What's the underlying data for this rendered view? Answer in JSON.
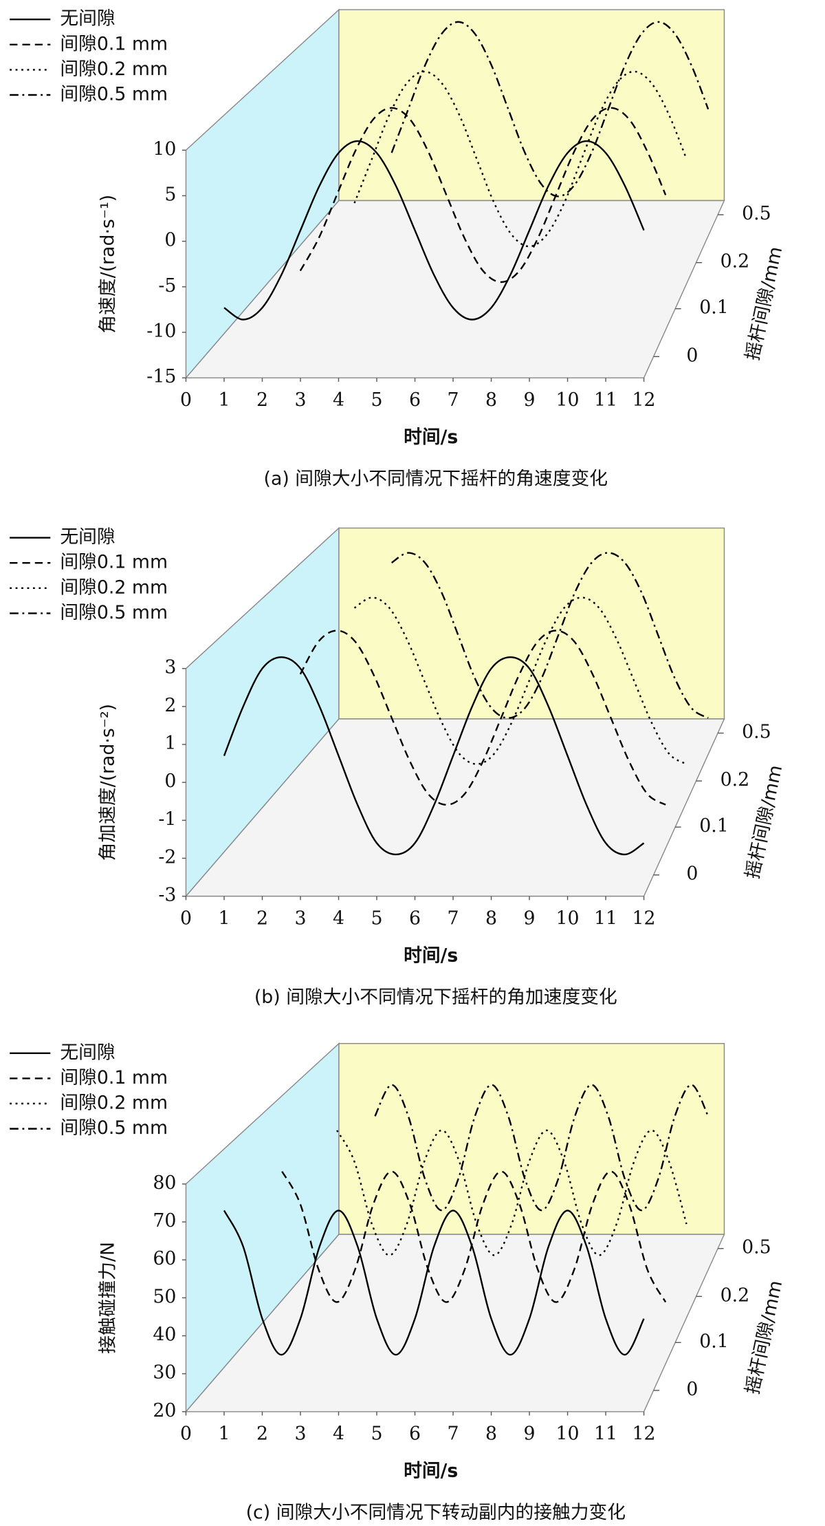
{
  "chart_data": [
    {
      "type": "line",
      "caption": "(a) 间隙大小不同情况下摇杆的角速度变化",
      "xlabel": "时间/s",
      "ylabel": "角速度/(rad·s⁻¹)",
      "zlabel": "摇杆间隙/mm",
      "x": [
        1,
        1.5,
        2,
        2.5,
        3,
        3.5,
        4,
        4.5,
        5,
        5.5,
        6,
        6.5,
        7,
        7.5,
        8,
        8.5,
        9,
        9.5,
        10,
        10.5,
        11,
        11.5,
        12
      ],
      "xlim": [
        0,
        12
      ],
      "xticks": [
        0,
        1,
        2,
        3,
        4,
        5,
        6,
        7,
        8,
        9,
        10,
        11,
        12
      ],
      "ylim": [
        -15,
        10
      ],
      "yticks": [
        -15,
        -10,
        -5,
        0,
        5,
        10
      ],
      "zticks": [
        0,
        0.1,
        0.2,
        0.5
      ],
      "series": [
        {
          "name": "无间隙",
          "color": "#000000",
          "dash": "solid",
          "values": [
            -7.3,
            -8.6,
            -7.3,
            -3.7,
            1.2,
            6.1,
            9.7,
            11,
            9.7,
            6.1,
            1.2,
            -3.7,
            -7.3,
            -8.6,
            -7.3,
            -3.7,
            1.2,
            6.1,
            9.7,
            11,
            9.7,
            6.1,
            1.2
          ]
        },
        {
          "name": "间隙0.1 mm",
          "color": "#000000",
          "dash": "dashed",
          "values": [
            null,
            null,
            -8.2,
            -4.5,
            0.5,
            5.5,
            9.2,
            10.5,
            9.2,
            5.5,
            0.5,
            -4.5,
            -8.2,
            -9.5,
            -8.2,
            -4.5,
            0.5,
            5.5,
            9.2,
            10.5,
            9.2,
            5.5,
            0.5
          ]
        },
        {
          "name": "间隙0.2 mm",
          "color": "#000000",
          "dash": "dotted",
          "values": [
            null,
            null,
            null,
            -5.3,
            0,
            5.3,
            9.1,
            10.5,
            9.1,
            5.3,
            0,
            -5.3,
            -9.1,
            -10.5,
            -9.1,
            -5.3,
            0,
            5.3,
            9.1,
            10.5,
            9.1,
            5.3,
            0
          ]
        },
        {
          "name": "间隙0.5 mm",
          "color": "#000000",
          "dash": "dashdot",
          "values": [
            null,
            null,
            null,
            -4.5,
            1,
            6.5,
            10.5,
            12,
            10.5,
            6.5,
            1,
            -4.5,
            -8.5,
            -10,
            -8.5,
            -4.5,
            1,
            6.5,
            10.5,
            12,
            10.5,
            6.5,
            1
          ]
        }
      ]
    },
    {
      "type": "line",
      "caption": "(b) 间隙大小不同情况下摇杆的角加速度变化",
      "xlabel": "时间/s",
      "ylabel": "角加速度/(rad·s⁻²)",
      "zlabel": "摇杆间隙/mm",
      "x": [
        1,
        1.5,
        2,
        2.5,
        3,
        3.5,
        4,
        4.5,
        5,
        5.5,
        6,
        6.5,
        7,
        7.5,
        8,
        8.5,
        9,
        9.5,
        10,
        10.5,
        11,
        11.5,
        12
      ],
      "xlim": [
        0,
        12
      ],
      "xticks": [
        0,
        1,
        2,
        3,
        4,
        5,
        6,
        7,
        8,
        9,
        10,
        11,
        12
      ],
      "ylim": [
        -3,
        3
      ],
      "yticks": [
        -3,
        -2,
        -1,
        0,
        1,
        2,
        3
      ],
      "zticks": [
        0,
        0.1,
        0.2,
        0.5
      ],
      "series": [
        {
          "name": "无间隙",
          "color": "#000000",
          "dash": "solid",
          "values": [
            0.7,
            2.0,
            3.0,
            3.3,
            3.0,
            2.0,
            0.7,
            -0.6,
            -1.6,
            -1.9,
            -1.6,
            -0.6,
            0.7,
            2.0,
            3.0,
            3.3,
            3.0,
            2.0,
            0.7,
            -0.6,
            -1.6,
            -1.9,
            -1.6
          ]
        },
        {
          "name": "间隙0.1 mm",
          "color": "#000000",
          "dash": "dashed",
          "values": [
            null,
            null,
            1.8,
            2.7,
            3.0,
            2.7,
            1.8,
            0.6,
            -0.6,
            -1.5,
            -1.8,
            -1.5,
            -0.6,
            0.6,
            1.8,
            2.7,
            3.0,
            2.7,
            1.8,
            0.6,
            -0.6,
            -1.5,
            -1.8
          ]
        },
        {
          "name": "间隙0.2 mm",
          "color": "#000000",
          "dash": "dotted",
          "values": [
            null,
            null,
            null,
            2.6,
            2.9,
            2.6,
            1.7,
            0.5,
            -0.7,
            -1.6,
            -1.9,
            -1.6,
            -0.7,
            0.5,
            1.7,
            2.6,
            2.9,
            2.6,
            1.7,
            0.5,
            -0.7,
            -1.6,
            -1.9
          ]
        },
        {
          "name": "间隙0.5 mm",
          "color": "#000000",
          "dash": "dashdot",
          "values": [
            null,
            null,
            null,
            2.8,
            3.1,
            2.8,
            1.9,
            0.6,
            -0.7,
            -1.6,
            -1.9,
            -1.6,
            -0.7,
            0.6,
            1.9,
            2.8,
            3.1,
            2.8,
            1.9,
            0.6,
            -0.7,
            -1.6,
            -1.9
          ]
        }
      ]
    },
    {
      "type": "line",
      "caption": "(c) 间隙大小不同情况下转动副内的接触力变化",
      "xlabel": "时间/s",
      "ylabel": "接触碰撞力/N",
      "zlabel": "摇杆间隙/mm",
      "x": [
        1,
        1.5,
        2,
        2.5,
        3,
        3.5,
        4,
        4.5,
        5,
        5.5,
        6,
        6.5,
        7,
        7.5,
        8,
        8.5,
        9,
        9.5,
        10,
        10.5,
        11,
        11.5,
        12
      ],
      "xlim": [
        0,
        12
      ],
      "xticks": [
        0,
        1,
        2,
        3,
        4,
        5,
        6,
        7,
        8,
        9,
        10,
        11,
        12
      ],
      "ylim": [
        20,
        80
      ],
      "yticks": [
        20,
        30,
        40,
        50,
        60,
        70,
        80
      ],
      "zticks": [
        0,
        0.1,
        0.2,
        0.5
      ],
      "series": [
        {
          "name": "无间隙",
          "color": "#000000",
          "dash": "solid",
          "values": [
            73,
            63.5,
            44.5,
            35,
            44.5,
            63.5,
            73,
            63.5,
            44.5,
            35,
            44.5,
            63.5,
            73,
            63.5,
            44.5,
            35,
            44.5,
            63.5,
            73,
            63.5,
            44.5,
            35,
            44.5
          ]
        },
        {
          "name": "间隙0.1 mm",
          "color": "#000000",
          "dash": "dashed",
          "values": [
            null,
            73,
            64,
            46,
            37,
            46,
            64,
            73,
            64,
            46,
            37,
            46,
            64,
            73,
            64,
            46,
            37,
            46,
            64,
            73,
            64,
            46,
            37
          ]
        },
        {
          "name": "间隙0.2 mm",
          "color": "#000000",
          "dash": "dotted",
          "values": [
            null,
            null,
            74,
            65,
            47,
            38,
            47,
            65,
            74,
            65,
            47,
            38,
            47,
            65,
            74,
            65,
            47,
            38,
            47,
            65,
            74,
            65,
            47
          ]
        },
        {
          "name": "间隙0.5 mm",
          "color": "#000000",
          "dash": "dashdot",
          "values": [
            null,
            null,
            66.5,
            76,
            66.5,
            47.5,
            38,
            47.5,
            66.5,
            76,
            66.5,
            47.5,
            38,
            47.5,
            66.5,
            76,
            66.5,
            47.5,
            38,
            47.5,
            66.5,
            76,
            66.5
          ]
        }
      ]
    }
  ]
}
